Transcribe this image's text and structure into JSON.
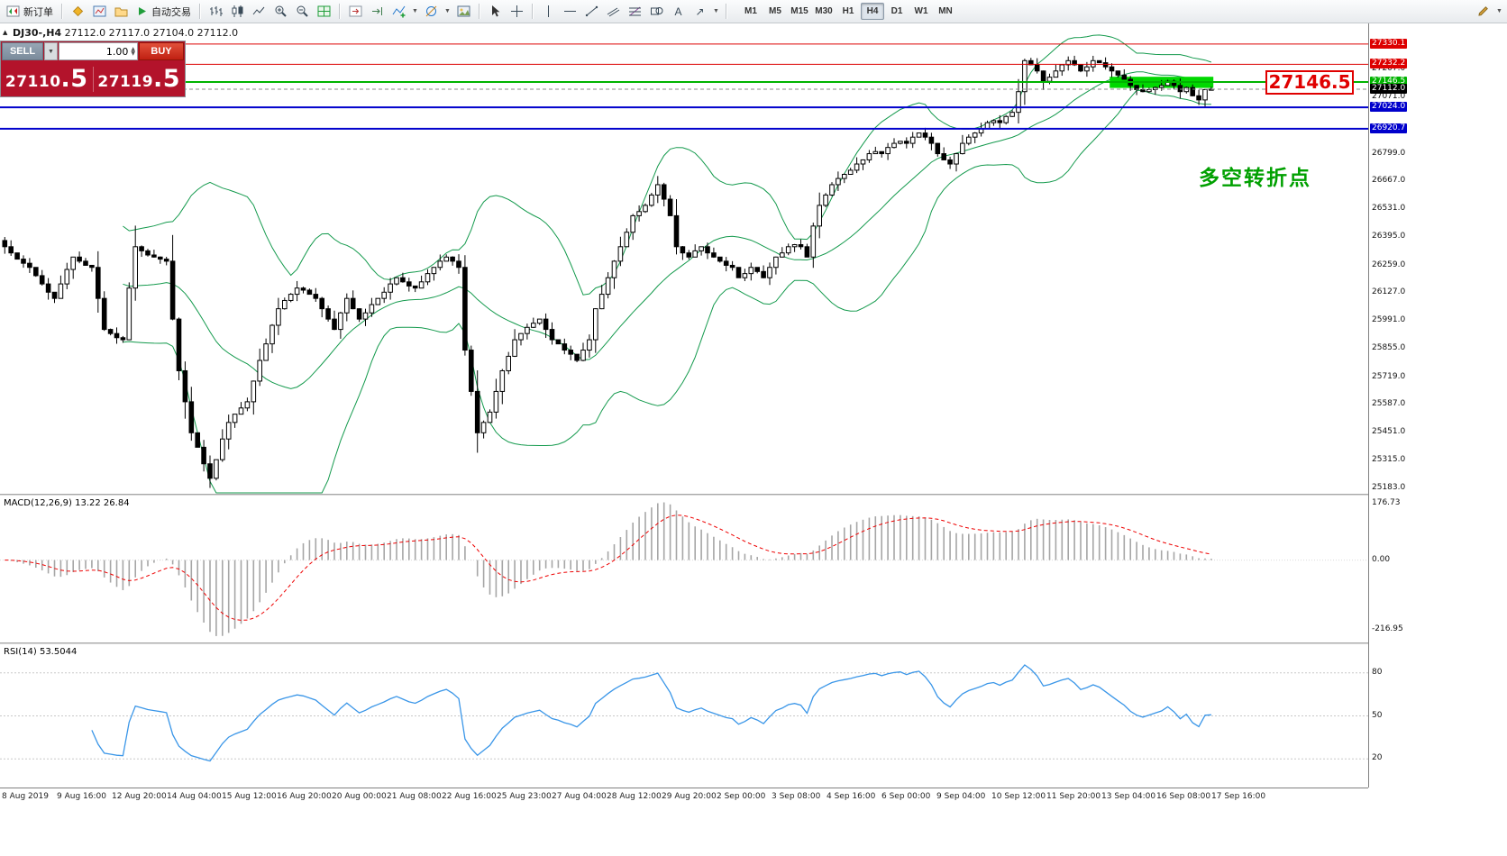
{
  "toolbar": {
    "new_order_label": "新订单",
    "autotrading_label": "自动交易",
    "text_tool_label": "A",
    "timeframes": [
      "M1",
      "M5",
      "M15",
      "M30",
      "H1",
      "H4",
      "D1",
      "W1",
      "MN"
    ],
    "active_timeframe": "H4"
  },
  "chart_header": {
    "symbol_period": "DJ30-,H4",
    "open": "27112.0",
    "high": "27117.0",
    "low": "27104.0",
    "close": "27112.0"
  },
  "trade_panel": {
    "sell_label": "SELL",
    "buy_label": "BUY",
    "volume": "1.00",
    "sell_price_main": "27110",
    "sell_price_big": ".5",
    "buy_price_main": "27119",
    "buy_price_big": ".5"
  },
  "annotations": {
    "level_callout": "27146.5",
    "turning_point": "多空转折点"
  },
  "chart_data": {
    "type": "candlestick",
    "symbol": "DJ30",
    "timeframe": "H4",
    "price_max_visible": 27430,
    "price_min_visible": 25155,
    "closes": [
      26350,
      26320,
      26290,
      26270,
      26250,
      26210,
      26170,
      26130,
      26100,
      26170,
      26240,
      26300,
      26280,
      26260,
      26250,
      26100,
      25950,
      25930,
      25910,
      25900,
      26150,
      26350,
      26330,
      26310,
      26300,
      26290,
      26280,
      26000,
      25750,
      25600,
      25450,
      25380,
      25300,
      25230,
      25320,
      25420,
      25500,
      25540,
      25570,
      25600,
      25700,
      25800,
      25880,
      25970,
      26050,
      26090,
      26120,
      26150,
      26140,
      26120,
      26100,
      26050,
      26000,
      25950,
      26030,
      26100,
      26050,
      26000,
      26030,
      26070,
      26100,
      26130,
      26170,
      26200,
      26180,
      26160,
      26150,
      26180,
      26220,
      26250,
      26280,
      26300,
      26280,
      26250,
      25850,
      25650,
      25450,
      25500,
      25550,
      25650,
      25750,
      25820,
      25900,
      25930,
      25960,
      25980,
      26000,
      25950,
      25900,
      25880,
      25850,
      25830,
      25800,
      25850,
      25900,
      26050,
      26120,
      26200,
      26280,
      26350,
      26420,
      26500,
      26520,
      26550,
      26600,
      26650,
      26580,
      26500,
      26350,
      26320,
      26300,
      26330,
      26350,
      26320,
      26300,
      26280,
      26260,
      26250,
      26200,
      26220,
      26250,
      26230,
      26200,
      26250,
      26300,
      26320,
      26350,
      26360,
      26350,
      26300,
      26450,
      26550,
      26600,
      26650,
      26680,
      26700,
      26720,
      26750,
      26770,
      26800,
      26810,
      26800,
      26830,
      26850,
      26860,
      26850,
      26880,
      26900,
      26880,
      26850,
      26800,
      26770,
      26750,
      26800,
      26850,
      26880,
      26900,
      26920,
      26950,
      26960,
      26950,
      26980,
      27000,
      27100,
      27250,
      27230,
      27200,
      27150,
      27170,
      27200,
      27230,
      27250,
      27230,
      27200,
      27220,
      27250,
      27240,
      27220,
      27200,
      27180,
      27160,
      27130,
      27110,
      27100,
      27110,
      27120,
      27130,
      27150,
      27130,
      27100,
      27120,
      27080,
      27060,
      27110,
      27112
    ],
    "levels": [
      {
        "price": 27330.1,
        "color": "#dd0000",
        "width": 1
      },
      {
        "price": 27232.2,
        "color": "#dd0000",
        "width": 1
      },
      {
        "price": 27146.5,
        "color": "#00b300",
        "width": 2
      },
      {
        "price": 27024.0,
        "color": "#0000cc",
        "width": 2
      },
      {
        "price": 26920.7,
        "color": "#0000cc",
        "width": 2
      }
    ],
    "current_price": {
      "value": 27112.0,
      "label": "27112.0"
    },
    "zone": {
      "start_index": 178,
      "end_index": 194,
      "price_top": 27172,
      "price_bottom": 27118,
      "color": "#00d800"
    },
    "bollinger": {
      "period": 20,
      "deviation": 2,
      "color": "#149a4d"
    },
    "price_axis_labels": [
      "27207.0",
      "27071.0",
      "26799.0",
      "26667.0",
      "26531.0",
      "26395.0",
      "26259.0",
      "26127.0",
      "25991.0",
      "25855.0",
      "25719.0",
      "25587.0",
      "25451.0",
      "25315.0",
      "25183.0"
    ],
    "macd": {
      "label": "MACD(12,26,9) 13.22 26.84",
      "params": [
        12,
        26,
        9
      ],
      "axis_labels": [
        "176.73",
        "0.00",
        "-216.95"
      ],
      "axis_values": [
        176.73,
        0,
        -216.95
      ],
      "hist_color": "#a6a6a6",
      "signal_color": "#ee0000"
    },
    "rsi": {
      "label": "RSI(14) 53.5044",
      "period": 14,
      "levels": [
        80,
        50,
        20
      ],
      "color": "#3a96e8"
    },
    "time_axis": [
      "8 Aug 2019",
      "9 Aug 16:00",
      "12 Aug 20:00",
      "14 Aug 04:00",
      "15 Aug 12:00",
      "16 Aug 20:00",
      "20 Aug 00:00",
      "21 Aug 08:00",
      "22 Aug 16:00",
      "25 Aug 23:00",
      "27 Aug 04:00",
      "28 Aug 12:00",
      "29 Aug 20:00",
      "2 Sep 00:00",
      "3 Sep 08:00",
      "4 Sep 16:00",
      "6 Sep 00:00",
      "9 Sep 04:00",
      "10 Sep 12:00",
      "11 Sep 20:00",
      "13 Sep 04:00",
      "16 Sep 08:00",
      "17 Sep 16:00"
    ]
  }
}
